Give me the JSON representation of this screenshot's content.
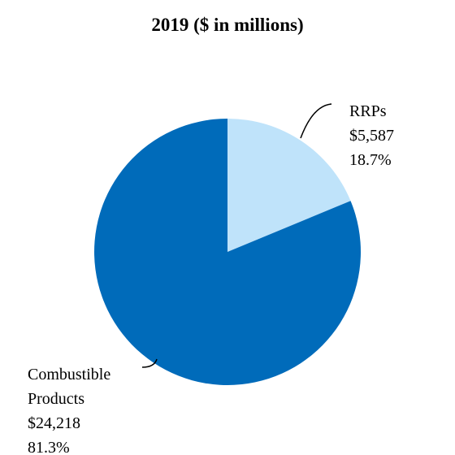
{
  "chart_data": {
    "type": "pie",
    "title": "2019 ($ in millions)",
    "slices": [
      {
        "name": "RRPs",
        "name_lines": [
          "RRPs"
        ],
        "value_text": "$5,587",
        "pct_text": "18.7%",
        "value": 5587,
        "percent": 18.7,
        "color": "#BFE3FA"
      },
      {
        "name": "Combustible Products",
        "name_lines": [
          "Combustible",
          "Products"
        ],
        "value_text": "$24,218",
        "pct_text": "81.3%",
        "value": 24218,
        "percent": 81.3,
        "color": "#006BBA"
      }
    ]
  }
}
